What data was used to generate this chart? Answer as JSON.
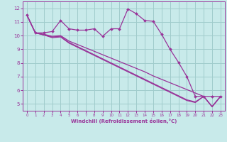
{
  "xlabel": "Windchill (Refroidissement éolien,°C)",
  "background_color": "#c8eaea",
  "grid_color": "#a0cccc",
  "line_color": "#993399",
  "xlim": [
    -0.5,
    23.5
  ],
  "ylim": [
    4.5,
    12.5
  ],
  "yticks": [
    5,
    6,
    7,
    8,
    9,
    10,
    11,
    12
  ],
  "xticks": [
    0,
    1,
    2,
    3,
    4,
    5,
    6,
    7,
    8,
    9,
    10,
    11,
    12,
    13,
    14,
    15,
    16,
    17,
    18,
    19,
    20,
    21,
    22,
    23
  ],
  "series": [
    [
      11.5,
      10.2,
      10.2,
      10.3,
      11.1,
      10.5,
      10.4,
      10.4,
      10.5,
      9.95,
      10.5,
      10.5,
      11.95,
      11.6,
      11.1,
      11.05,
      10.1,
      9.0,
      8.05,
      7.0,
      5.55,
      5.55,
      5.55,
      5.55
    ],
    [
      11.5,
      10.2,
      10.1,
      9.95,
      10.0,
      9.6,
      9.35,
      9.1,
      8.85,
      8.6,
      8.35,
      8.1,
      7.85,
      7.6,
      7.35,
      7.05,
      6.8,
      6.55,
      6.3,
      6.05,
      5.8,
      5.55,
      4.8,
      5.55
    ],
    [
      11.5,
      10.2,
      10.05,
      9.9,
      9.95,
      9.5,
      9.2,
      8.9,
      8.6,
      8.3,
      8.0,
      7.7,
      7.4,
      7.1,
      6.8,
      6.5,
      6.2,
      5.9,
      5.6,
      5.3,
      5.15,
      5.55,
      4.8,
      5.55
    ],
    [
      11.5,
      10.2,
      10.05,
      9.85,
      9.9,
      9.45,
      9.15,
      8.85,
      8.55,
      8.25,
      7.95,
      7.65,
      7.35,
      7.05,
      6.75,
      6.45,
      6.15,
      5.85,
      5.55,
      5.25,
      5.1,
      5.55,
      4.8,
      5.55
    ]
  ]
}
